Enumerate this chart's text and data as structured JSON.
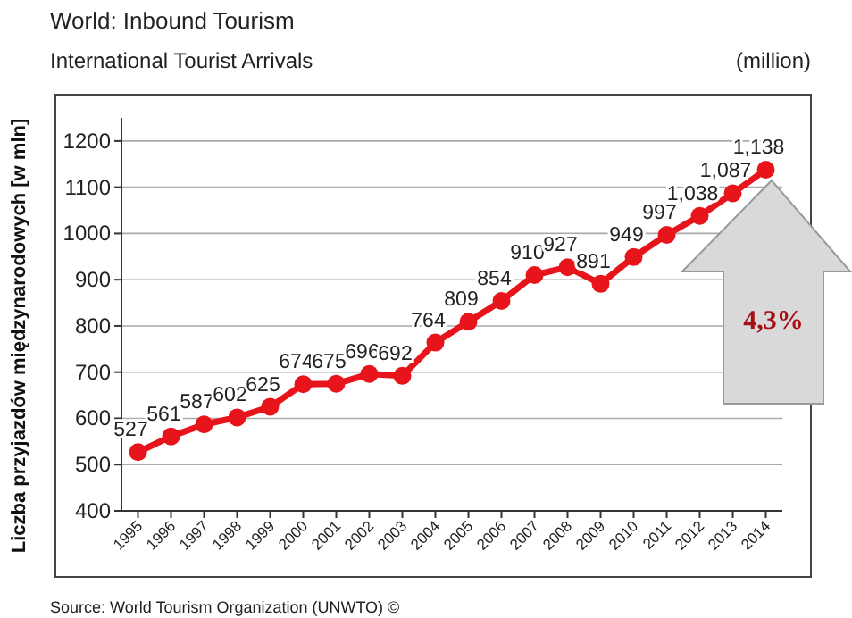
{
  "chart_data": {
    "type": "line",
    "title": "World: Inbound Tourism",
    "subtitle": "International Tourist Arrivals",
    "ylabel": "Liczba  przyjazdów międzynarodowych [w mln]",
    "annotations": [
      "(million)",
      "4,3%",
      "Source: World Tourism Organization (UNWTO) ©"
    ],
    "categories": [
      "1995",
      "1996",
      "1997",
      "1998",
      "1999",
      "2000",
      "2001",
      "2002",
      "2003",
      "2004",
      "2005",
      "2006",
      "2007",
      "2008",
      "2009",
      "2010",
      "2011",
      "2012",
      "2013",
      "2014"
    ],
    "series": [
      {
        "color": "#e8141b",
        "values": [
          527,
          561,
          587,
          602,
          625,
          674,
          675,
          696,
          692,
          764,
          809,
          854,
          910,
          927,
          891,
          949,
          997,
          1038,
          1087,
          1138
        ],
        "value_labels": [
          "527",
          "561",
          "587",
          "602",
          "625",
          "674",
          "675",
          "696",
          "692",
          "764",
          "809",
          "854",
          "910",
          "927",
          "891",
          "949",
          "997",
          "1,038",
          "1,087",
          "1,138"
        ]
      }
    ],
    "ylim": [
      400,
      1250
    ],
    "yticks": [
      400,
      500,
      600,
      700,
      800,
      900,
      1000,
      1100,
      1200
    ],
    "grid": "y",
    "marker": "circle",
    "line_style": "solid"
  }
}
